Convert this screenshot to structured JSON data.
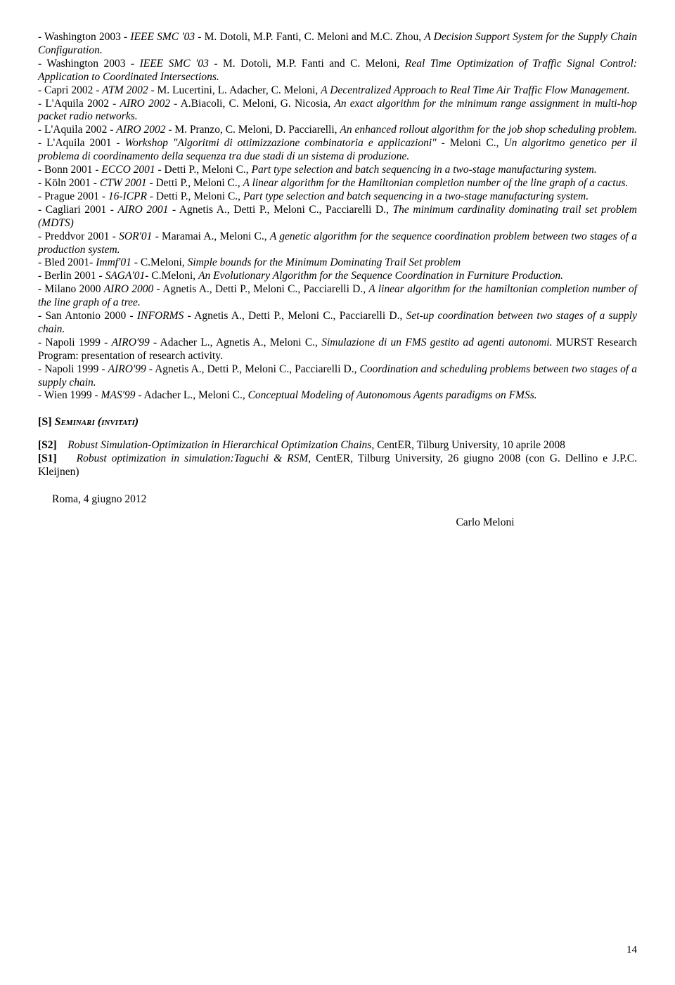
{
  "entries": [
    "- Washington 2003 - <i>IEEE SMC '03</i> - M. Dotoli, M.P. Fanti, C. Meloni and M.C. Zhou, <i>A Decision Support System for the Supply Chain Configuration.</i>",
    "- Washington 2003 - <i>IEEE SMC '03</i> - M. Dotoli, M.P. Fanti and C. Meloni, <i>Real Time Optimization of Traffic Signal Control: Application to Coordinated Intersections.</i>",
    "- Capri 2002 - <i>ATM 2002</i> - M. Lucertini, L. Adacher, C. Meloni, <i>A Decentralized Approach to Real Time Air Traffic Flow Management.</i>",
    "- L'Aquila 2002 - <i>AIRO 2002</i> - A.Biacoli, C. Meloni, G. Nicosia, <i>An exact algorithm for the minimum range assignment in multi-hop packet radio networks.</i>",
    "- L'Aquila 2002 - <i>AIRO 2002</i> - M. Pranzo, C. Meloni, D. Pacciarelli, <i>An enhanced rollout algorithm for the job shop scheduling problem.</i>",
    "- L'Aquila 2001 - <i>Workshop &quot;Algoritmi di ottimizzazione combinatoria e applicazioni&quot;</i> - Meloni C., <i>Un algoritmo genetico per il problema di coordinamento della sequenza tra due stadi di un sistema di produzione.</i>",
    "- Bonn 2001 - <i>ECCO 2001</i> - Detti P., Meloni C., <i>Part type selection and batch sequencing in a two-stage manufacturing system.</i>",
    "- Köln 2001 - <i>CTW 2001</i> - Detti P., Meloni C., <i>A linear algorithm for the Hamiltonian completion number of the line graph of a cactus.</i>",
    "- Prague 2001 - <i>16-ICPR</i> - Detti P., Meloni C., <i>Part type selection and batch sequencing in a two-stage manufacturing system.</i>",
    "- Cagliari 2001 - <i>AIRO 2001</i> - Agnetis A., Detti P., Meloni C., Pacciarelli D., <i>The minimum cardinality dominating trail set problem (MDTS)</i>",
    "- Preddvor 2001 - <i>SOR'01</i> - Maramai A., Meloni C., <i>A genetic algorithm for the sequence coordination problem between two stages of a production system.</i>",
    "- Bled 2001- <i>Immf'01</i> - C.Meloni, <i>Simple bounds for the Minimum Dominating Trail Set problem</i>",
    "- Berlin 2001 - <i>SAGA'01</i>- C.Meloni, <i>An Evolutionary Algorithm for the Sequence Coordination in Furniture Production.</i>",
    "- Milano 2000 <i>AIRO 2000</i> - Agnetis A., Detti P., Meloni C., Pacciarelli D., <i>A linear algorithm for the hamiltonian completion number of the line graph of a tree.</i>",
    "- San Antonio 2000 - <i>INFORMS</i> - Agnetis A., Detti P., Meloni C., Pacciarelli D., <i>Set-up coordination between two stages of a supply chain.</i>",
    "- Napoli 1999 - <i>AIRO'99</i> - Adacher L., Agnetis A., Meloni C., <i>Simulazione di un FMS gestito ad agenti autonomi.</i> MURST Research Program: presentation of research activity.",
    "- Napoli 1999 - <i>AIRO'99</i> - Agnetis A., Detti P., Meloni C., Pacciarelli D., <i>Coordination and scheduling problems between two stages of a supply chain.</i>",
    "- Wien 1999 - <i>MAS'99</i> - Adacher L., Meloni C., <i>Conceptual Modeling of Autonomous Agents paradigms on FMSs.</i>"
  ],
  "sectionHeader": {
    "bracket": "[S] ",
    "title": "Seminari",
    "paren": " (invitati)"
  },
  "seminars": [
    "<b>[S2]</b>&nbsp;&nbsp;&nbsp;&nbsp;<i>Robust Simulation-Optimization in Hierarchical Optimization Chains</i>, CentER, Tilburg University, 10 aprile 2008",
    "<b>[S1]</b>&nbsp;&nbsp;&nbsp;&nbsp;<i>Robust optimization in simulation:Taguchi &amp; RSM</i>, CentER, Tilburg University, 26 giugno 2008 (con G. Dellino e J.P.C. Kleijnen)"
  ],
  "dateLine": "Roma, 4 giugno 2012",
  "signature": "Carlo Meloni",
  "pageNumber": "14"
}
